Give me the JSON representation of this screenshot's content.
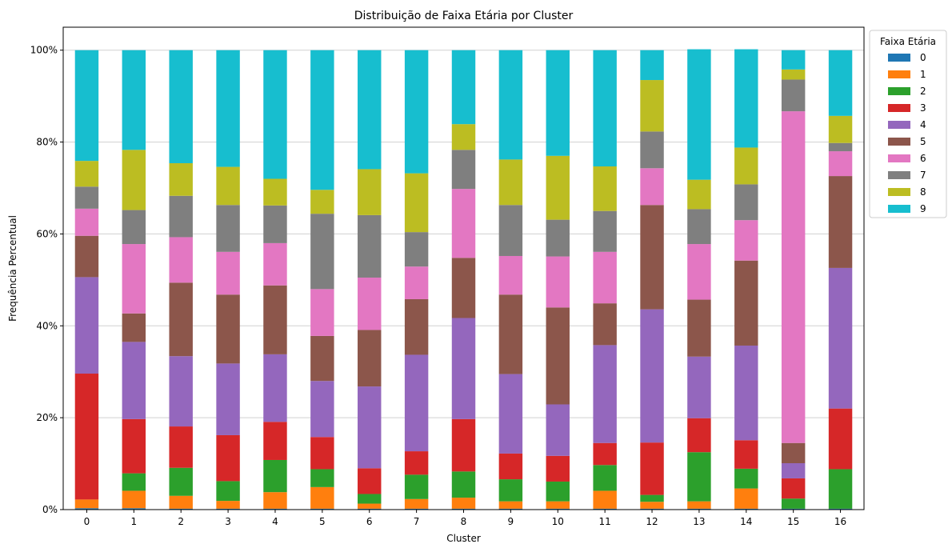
{
  "chart_data": {
    "type": "bar",
    "stacked": true,
    "title": "Distribuição de Faixa Etária por Cluster",
    "xlabel": "Cluster",
    "ylabel": "Frequência Percentual",
    "categories": [
      "0",
      "1",
      "2",
      "3",
      "4",
      "5",
      "6",
      "7",
      "8",
      "9",
      "10",
      "11",
      "12",
      "13",
      "14",
      "15",
      "16"
    ],
    "y_ticks": [
      "0%",
      "20%",
      "40%",
      "60%",
      "80%",
      "100%"
    ],
    "ylim": [
      0,
      105
    ],
    "grid": "y",
    "legend": {
      "title": "Faixa Etária",
      "placement": "outside-right-top"
    },
    "series": [
      {
        "name": "0",
        "color": "#1f77b4",
        "values": [
          0.3,
          0.3,
          0.2,
          0.2,
          0.2,
          0.2,
          0.2,
          0.2,
          0.2,
          0.2,
          0.2,
          0.2,
          0.2,
          0.2,
          0.2,
          0.2,
          0.2
        ]
      },
      {
        "name": "1",
        "color": "#ff7f0e",
        "values": [
          1.9,
          3.8,
          2.8,
          1.7,
          3.6,
          4.7,
          1.1,
          2.1,
          2.4,
          1.6,
          1.6,
          3.9,
          1.5,
          1.6,
          4.4,
          0.0,
          0.0
        ]
      },
      {
        "name": "2",
        "color": "#2ca02c",
        "values": [
          0.0,
          3.8,
          6.1,
          4.3,
          7.0,
          3.9,
          2.1,
          5.3,
          5.7,
          4.8,
          4.3,
          5.6,
          1.5,
          10.7,
          4.3,
          2.2,
          8.6
        ]
      },
      {
        "name": "3",
        "color": "#d62728",
        "values": [
          27.4,
          11.8,
          9.0,
          10.0,
          8.3,
          7.0,
          5.6,
          5.1,
          11.4,
          5.6,
          5.6,
          4.8,
          11.4,
          7.4,
          6.2,
          4.4,
          13.2
        ]
      },
      {
        "name": "4",
        "color": "#9467bd",
        "values": [
          21.0,
          16.8,
          15.3,
          15.6,
          14.7,
          12.2,
          17.8,
          21.0,
          22.0,
          17.3,
          11.2,
          21.3,
          29.0,
          13.4,
          20.6,
          3.3,
          30.6
        ]
      },
      {
        "name": "5",
        "color": "#8c564b",
        "values": [
          9.0,
          6.2,
          16.0,
          15.0,
          15.0,
          9.8,
          12.3,
          12.1,
          13.1,
          17.3,
          21.1,
          9.1,
          22.7,
          12.4,
          18.5,
          4.4,
          20.0
        ]
      },
      {
        "name": "6",
        "color": "#e377c2",
        "values": [
          5.9,
          15.1,
          9.9,
          9.3,
          9.2,
          10.2,
          11.4,
          7.1,
          15.0,
          8.4,
          11.1,
          11.2,
          8.0,
          12.1,
          8.8,
          72.2,
          5.4
        ]
      },
      {
        "name": "7",
        "color": "#7f7f7f",
        "values": [
          4.8,
          7.4,
          9.0,
          10.2,
          8.2,
          16.4,
          13.6,
          7.5,
          8.5,
          11.1,
          8.0,
          8.9,
          8.0,
          7.6,
          7.8,
          6.9,
          1.8
        ]
      },
      {
        "name": "8",
        "color": "#bcbd22",
        "values": [
          5.6,
          13.1,
          7.1,
          8.3,
          5.8,
          5.2,
          10.0,
          12.8,
          5.6,
          9.9,
          13.9,
          9.7,
          11.2,
          6.4,
          8.0,
          2.2,
          5.9
        ]
      },
      {
        "name": "9",
        "color": "#17becf",
        "values": [
          24.1,
          21.7,
          24.6,
          25.4,
          28.0,
          30.4,
          25.9,
          26.8,
          16.1,
          23.8,
          23.0,
          25.3,
          6.5,
          28.4,
          21.4,
          4.2,
          14.3
        ]
      }
    ]
  }
}
